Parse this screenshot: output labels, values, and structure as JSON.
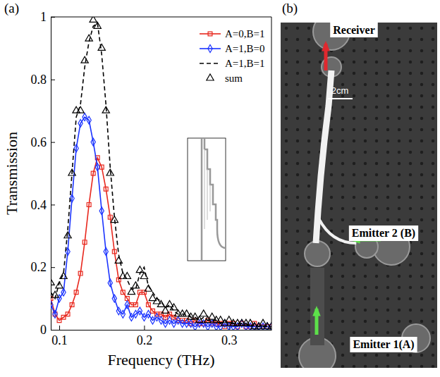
{
  "chart_data": {
    "type": "line",
    "panel": "(a)",
    "x_label": "Frequency (THz)",
    "y_label": "Transmission",
    "x": [
      0.09,
      0.095,
      0.1,
      0.105,
      0.11,
      0.115,
      0.12,
      0.125,
      0.13,
      0.135,
      0.14,
      0.145,
      0.15,
      0.155,
      0.16,
      0.165,
      0.17,
      0.175,
      0.18,
      0.185,
      0.19,
      0.195,
      0.2,
      0.205,
      0.21,
      0.215,
      0.22,
      0.225,
      0.23,
      0.235,
      0.24,
      0.245,
      0.25,
      0.255,
      0.26,
      0.265,
      0.27,
      0.275,
      0.28,
      0.285,
      0.29,
      0.295,
      0.3,
      0.305,
      0.31,
      0.315,
      0.32,
      0.325,
      0.33,
      0.335,
      0.34,
      0.345,
      0.35
    ],
    "xlim": [
      0.09,
      0.35
    ],
    "xticks": [
      0.1,
      0.2,
      0.3
    ],
    "ylim": [
      0,
      1
    ],
    "yticks": [
      0,
      0.2,
      0.4,
      0.6,
      0.8,
      1
    ],
    "grid": false,
    "legend": "top-right",
    "series": [
      {
        "name": "A=0,B=1",
        "type": "line",
        "color": "#e8281e",
        "marker": "square",
        "line_style": "solid",
        "values": [
          0.1,
          0.05,
          0.03,
          0.04,
          0.05,
          0.08,
          0.12,
          0.18,
          0.28,
          0.4,
          0.5,
          0.55,
          0.52,
          0.45,
          0.36,
          0.25,
          0.16,
          0.12,
          0.1,
          0.08,
          0.08,
          0.12,
          0.12,
          0.08,
          0.06,
          0.05,
          0.05,
          0.04,
          0.05,
          0.04,
          0.03,
          0.03,
          0.03,
          0.02,
          0.03,
          0.02,
          0.02,
          0.03,
          0.02,
          0.02,
          0.02,
          0.01,
          0.02,
          0.02,
          0.01,
          0.02,
          0.01,
          0.01,
          0.02,
          0.01,
          0.01,
          0.01,
          0.01
        ]
      },
      {
        "name": "A=1,B=0",
        "type": "line",
        "color": "#1a33ff",
        "marker": "diamond",
        "line_style": "solid",
        "values": [
          0.08,
          0.05,
          0.1,
          0.12,
          0.25,
          0.42,
          0.58,
          0.66,
          0.68,
          0.67,
          0.6,
          0.52,
          0.38,
          0.25,
          0.15,
          0.1,
          0.06,
          0.05,
          0.08,
          0.04,
          0.05,
          0.06,
          0.04,
          0.05,
          0.03,
          0.04,
          0.03,
          0.02,
          0.03,
          0.02,
          0.03,
          0.02,
          0.02,
          0.02,
          0.01,
          0.02,
          0.02,
          0.01,
          0.02,
          0.01,
          0.01,
          0.02,
          0.01,
          0.01,
          0.01,
          0.02,
          0.01,
          0.01,
          0.01,
          0.01,
          0.01,
          0.01,
          0.01
        ]
      },
      {
        "name": "A=1,B=1",
        "type": "line",
        "color": "#000000",
        "marker": "none",
        "line_style": "dashed",
        "values": [
          0.12,
          0.1,
          0.15,
          0.18,
          0.32,
          0.5,
          0.68,
          0.72,
          0.84,
          0.92,
          0.97,
          0.98,
          0.88,
          0.72,
          0.52,
          0.36,
          0.24,
          0.18,
          0.16,
          0.13,
          0.13,
          0.18,
          0.2,
          0.14,
          0.12,
          0.1,
          0.09,
          0.07,
          0.08,
          0.06,
          0.05,
          0.05,
          0.05,
          0.04,
          0.04,
          0.03,
          0.04,
          0.03,
          0.03,
          0.03,
          0.02,
          0.03,
          0.02,
          0.02,
          0.02,
          0.02,
          0.02,
          0.01,
          0.02,
          0.01,
          0.01,
          0.01,
          0.01
        ]
      },
      {
        "name": "sum",
        "type": "scatter",
        "color": "#000000",
        "marker": "triangle",
        "line_style": "none",
        "values": [
          0.15,
          0.11,
          0.14,
          0.17,
          0.3,
          0.5,
          0.7,
          0.7,
          0.86,
          0.93,
          0.99,
          0.97,
          0.9,
          0.7,
          0.5,
          0.35,
          0.22,
          0.17,
          0.17,
          0.12,
          0.14,
          0.19,
          0.17,
          0.13,
          0.1,
          0.09,
          0.08,
          0.06,
          0.08,
          0.07,
          0.05,
          0.05,
          0.05,
          0.04,
          0.04,
          0.03,
          0.05,
          0.03,
          0.04,
          0.03,
          0.03,
          0.02,
          0.03,
          0.02,
          0.02,
          0.02,
          0.02,
          0.02,
          0.01,
          0.01,
          0.02,
          0.01,
          0.01
        ]
      }
    ]
  },
  "photo": {
    "panel": "(b)",
    "receiver": "Receiver",
    "emitter_2": "Emitter 2 (B)",
    "emitter_1": "Emitter 1(A)",
    "scale_bar": "2cm"
  }
}
